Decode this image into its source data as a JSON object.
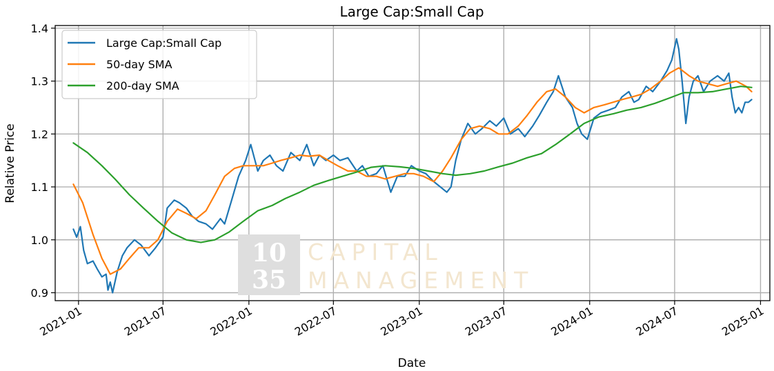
{
  "chart_data": {
    "type": "line",
    "title": "Large Cap:Small Cap",
    "xlabel": "Date",
    "ylabel": "Relative Price",
    "xlim": [
      "2020-11-12",
      "2025-01-21"
    ],
    "ylim": [
      0.885,
      1.405
    ],
    "grid": true,
    "legend_position": "upper-left",
    "x_ticks": [
      "2021-01-01",
      "2021-07-01",
      "2022-01-01",
      "2022-07-01",
      "2023-01-01",
      "2023-07-01",
      "2024-01-01",
      "2024-07-01",
      "2025-01-01"
    ],
    "x_tick_labels": [
      "2021-01",
      "2021-07",
      "2022-01",
      "2022-07",
      "2023-01",
      "2023-07",
      "2024-01",
      "2024-07",
      "2025-01"
    ],
    "y_ticks": [
      0.9,
      1.0,
      1.1,
      1.2,
      1.3,
      1.4
    ],
    "y_tick_labels": [
      "0.9",
      "1.0",
      "1.1",
      "1.2",
      "1.3",
      "1.4"
    ],
    "series": [
      {
        "name": "Large Cap:Small Cap",
        "color": "#1f77b4",
        "x": [
          "2020-12-21",
          "2020-12-28",
          "2021-01-05",
          "2021-01-12",
          "2021-01-20",
          "2021-02-01",
          "2021-02-10",
          "2021-02-20",
          "2021-03-01",
          "2021-03-05",
          "2021-03-10",
          "2021-03-15",
          "2021-03-25",
          "2021-04-05",
          "2021-04-15",
          "2021-05-01",
          "2021-05-15",
          "2021-06-01",
          "2021-06-15",
          "2021-07-01",
          "2021-07-10",
          "2021-07-25",
          "2021-08-05",
          "2021-08-20",
          "2021-09-01",
          "2021-09-15",
          "2021-10-01",
          "2021-10-15",
          "2021-11-01",
          "2021-11-10",
          "2021-11-25",
          "2021-12-10",
          "2021-12-25",
          "2022-01-05",
          "2022-01-20",
          "2022-02-01",
          "2022-02-15",
          "2022-03-01",
          "2022-03-15",
          "2022-04-01",
          "2022-04-20",
          "2022-05-05",
          "2022-05-20",
          "2022-06-01",
          "2022-06-15",
          "2022-07-01",
          "2022-07-15",
          "2022-08-01",
          "2022-08-20",
          "2022-09-01",
          "2022-09-15",
          "2022-10-01",
          "2022-10-15",
          "2022-11-01",
          "2022-11-15",
          "2022-12-01",
          "2022-12-15",
          "2023-01-01",
          "2023-01-15",
          "2023-02-01",
          "2023-02-15",
          "2023-03-01",
          "2023-03-10",
          "2023-03-20",
          "2023-04-01",
          "2023-04-15",
          "2023-05-01",
          "2023-05-15",
          "2023-06-01",
          "2023-06-15",
          "2023-07-01",
          "2023-07-15",
          "2023-08-01",
          "2023-08-15",
          "2023-09-01",
          "2023-09-15",
          "2023-10-01",
          "2023-10-15",
          "2023-10-26",
          "2023-11-10",
          "2023-11-25",
          "2023-12-05",
          "2023-12-15",
          "2023-12-27",
          "2024-01-10",
          "2024-01-25",
          "2024-02-10",
          "2024-02-25",
          "2024-03-10",
          "2024-03-25",
          "2024-04-05",
          "2024-04-15",
          "2024-05-01",
          "2024-05-15",
          "2024-06-01",
          "2024-06-15",
          "2024-06-25",
          "2024-07-05",
          "2024-07-10",
          "2024-07-17",
          "2024-07-25",
          "2024-08-01",
          "2024-08-10",
          "2024-08-20",
          "2024-09-01",
          "2024-09-15",
          "2024-10-01",
          "2024-10-15",
          "2024-10-25",
          "2024-11-01",
          "2024-11-08",
          "2024-11-15",
          "2024-11-22",
          "2024-11-29",
          "2024-12-06",
          "2024-12-13"
        ],
        "values": [
          1.02,
          1.005,
          1.025,
          0.98,
          0.955,
          0.96,
          0.945,
          0.93,
          0.935,
          0.905,
          0.92,
          0.9,
          0.94,
          0.97,
          0.985,
          1.0,
          0.99,
          0.97,
          0.985,
          1.005,
          1.06,
          1.075,
          1.07,
          1.06,
          1.045,
          1.035,
          1.03,
          1.02,
          1.04,
          1.03,
          1.075,
          1.12,
          1.15,
          1.18,
          1.13,
          1.15,
          1.16,
          1.14,
          1.13,
          1.165,
          1.15,
          1.18,
          1.14,
          1.16,
          1.15,
          1.16,
          1.15,
          1.155,
          1.13,
          1.14,
          1.12,
          1.125,
          1.14,
          1.09,
          1.12,
          1.12,
          1.14,
          1.13,
          1.125,
          1.11,
          1.1,
          1.09,
          1.1,
          1.15,
          1.19,
          1.22,
          1.2,
          1.21,
          1.225,
          1.215,
          1.23,
          1.2,
          1.21,
          1.195,
          1.215,
          1.235,
          1.26,
          1.28,
          1.31,
          1.27,
          1.25,
          1.22,
          1.2,
          1.19,
          1.23,
          1.24,
          1.245,
          1.25,
          1.27,
          1.28,
          1.26,
          1.265,
          1.29,
          1.28,
          1.3,
          1.32,
          1.34,
          1.38,
          1.36,
          1.3,
          1.22,
          1.27,
          1.3,
          1.31,
          1.28,
          1.3,
          1.31,
          1.3,
          1.315,
          1.27,
          1.24,
          1.25,
          1.24,
          1.26,
          1.26,
          1.265
        ]
      },
      {
        "name": "50-day SMA",
        "color": "#ff7f0e",
        "x": [
          "2020-12-21",
          "2021-01-10",
          "2021-02-01",
          "2021-02-20",
          "2021-03-10",
          "2021-04-01",
          "2021-04-20",
          "2021-05-10",
          "2021-06-01",
          "2021-06-20",
          "2021-07-10",
          "2021-08-01",
          "2021-08-20",
          "2021-09-10",
          "2021-10-01",
          "2021-10-20",
          "2021-11-10",
          "2021-12-01",
          "2021-12-20",
          "2022-01-10",
          "2022-02-01",
          "2022-02-20",
          "2022-03-10",
          "2022-04-01",
          "2022-04-20",
          "2022-05-10",
          "2022-06-01",
          "2022-06-20",
          "2022-07-10",
          "2022-08-01",
          "2022-08-20",
          "2022-09-10",
          "2022-10-01",
          "2022-10-20",
          "2022-11-10",
          "2022-12-01",
          "2022-12-20",
          "2023-01-10",
          "2023-02-01",
          "2023-02-20",
          "2023-03-10",
          "2023-04-01",
          "2023-04-20",
          "2023-05-10",
          "2023-06-01",
          "2023-06-20",
          "2023-07-10",
          "2023-08-01",
          "2023-08-20",
          "2023-09-10",
          "2023-10-01",
          "2023-10-20",
          "2023-11-10",
          "2023-12-01",
          "2023-12-20",
          "2024-01-10",
          "2024-02-01",
          "2024-02-20",
          "2024-03-10",
          "2024-04-01",
          "2024-04-20",
          "2024-05-10",
          "2024-06-01",
          "2024-06-20",
          "2024-07-10",
          "2024-08-01",
          "2024-08-20",
          "2024-09-10",
          "2024-10-01",
          "2024-10-20",
          "2024-11-10",
          "2024-12-01",
          "2024-12-13"
        ],
        "values": [
          1.105,
          1.07,
          1.01,
          0.965,
          0.935,
          0.945,
          0.965,
          0.985,
          0.985,
          1.0,
          1.035,
          1.058,
          1.05,
          1.04,
          1.055,
          1.085,
          1.12,
          1.135,
          1.14,
          1.14,
          1.14,
          1.145,
          1.15,
          1.155,
          1.16,
          1.158,
          1.16,
          1.15,
          1.14,
          1.13,
          1.13,
          1.12,
          1.12,
          1.115,
          1.12,
          1.125,
          1.125,
          1.12,
          1.11,
          1.13,
          1.155,
          1.19,
          1.21,
          1.215,
          1.21,
          1.2,
          1.2,
          1.215,
          1.235,
          1.26,
          1.28,
          1.285,
          1.27,
          1.25,
          1.24,
          1.25,
          1.255,
          1.26,
          1.265,
          1.27,
          1.275,
          1.285,
          1.3,
          1.315,
          1.325,
          1.31,
          1.3,
          1.295,
          1.29,
          1.295,
          1.3,
          1.29,
          1.28
        ]
      },
      {
        "name": "200-day SMA",
        "color": "#2ca02c",
        "x": [
          "2020-12-21",
          "2021-01-20",
          "2021-02-20",
          "2021-03-20",
          "2021-04-20",
          "2021-05-20",
          "2021-06-20",
          "2021-07-20",
          "2021-08-20",
          "2021-09-20",
          "2021-10-20",
          "2021-11-20",
          "2021-12-20",
          "2022-01-20",
          "2022-02-20",
          "2022-03-20",
          "2022-04-20",
          "2022-05-20",
          "2022-06-20",
          "2022-07-20",
          "2022-08-20",
          "2022-09-20",
          "2022-10-20",
          "2022-11-20",
          "2022-12-20",
          "2023-01-20",
          "2023-02-20",
          "2023-03-20",
          "2023-04-20",
          "2023-05-20",
          "2023-06-20",
          "2023-07-20",
          "2023-08-20",
          "2023-09-20",
          "2023-10-20",
          "2023-11-20",
          "2023-12-20",
          "2024-01-20",
          "2024-02-20",
          "2024-03-20",
          "2024-04-20",
          "2024-05-20",
          "2024-06-20",
          "2024-07-20",
          "2024-08-20",
          "2024-09-20",
          "2024-10-20",
          "2024-11-20",
          "2024-12-13"
        ],
        "values": [
          1.183,
          1.165,
          1.14,
          1.115,
          1.085,
          1.06,
          1.035,
          1.013,
          1.0,
          0.995,
          1.0,
          1.015,
          1.035,
          1.055,
          1.065,
          1.078,
          1.09,
          1.103,
          1.112,
          1.12,
          1.128,
          1.137,
          1.14,
          1.138,
          1.135,
          1.13,
          1.125,
          1.122,
          1.125,
          1.13,
          1.138,
          1.145,
          1.155,
          1.163,
          1.18,
          1.2,
          1.22,
          1.232,
          1.238,
          1.245,
          1.25,
          1.258,
          1.268,
          1.278,
          1.278,
          1.28,
          1.285,
          1.29,
          1.288
        ]
      }
    ],
    "watermark": {
      "numeral_lines": [
        "10",
        "35"
      ],
      "text_lines": [
        "CAPITAL",
        "MANAGEMENT"
      ]
    }
  }
}
